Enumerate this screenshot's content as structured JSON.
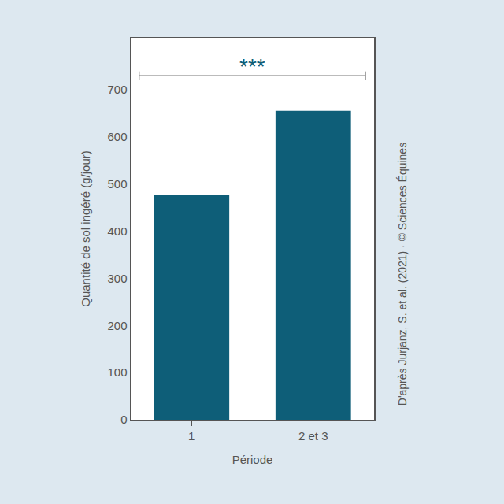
{
  "chart_data": {
    "type": "bar",
    "x_label": "Période",
    "y_label": "Quantité de sol ingéré (g/jour)",
    "categories": [
      "1",
      "2 et 3"
    ],
    "values": [
      476,
      655
    ],
    "color": "#0e5e78",
    "ylim": [
      0,
      810
    ],
    "yticks": [
      0,
      100,
      200,
      300,
      400,
      500,
      600,
      700
    ],
    "grid": false,
    "annotations": [
      "***"
    ],
    "source": "D'après Jurjanz, S. et al. (2021) · © Sciences Équines"
  }
}
